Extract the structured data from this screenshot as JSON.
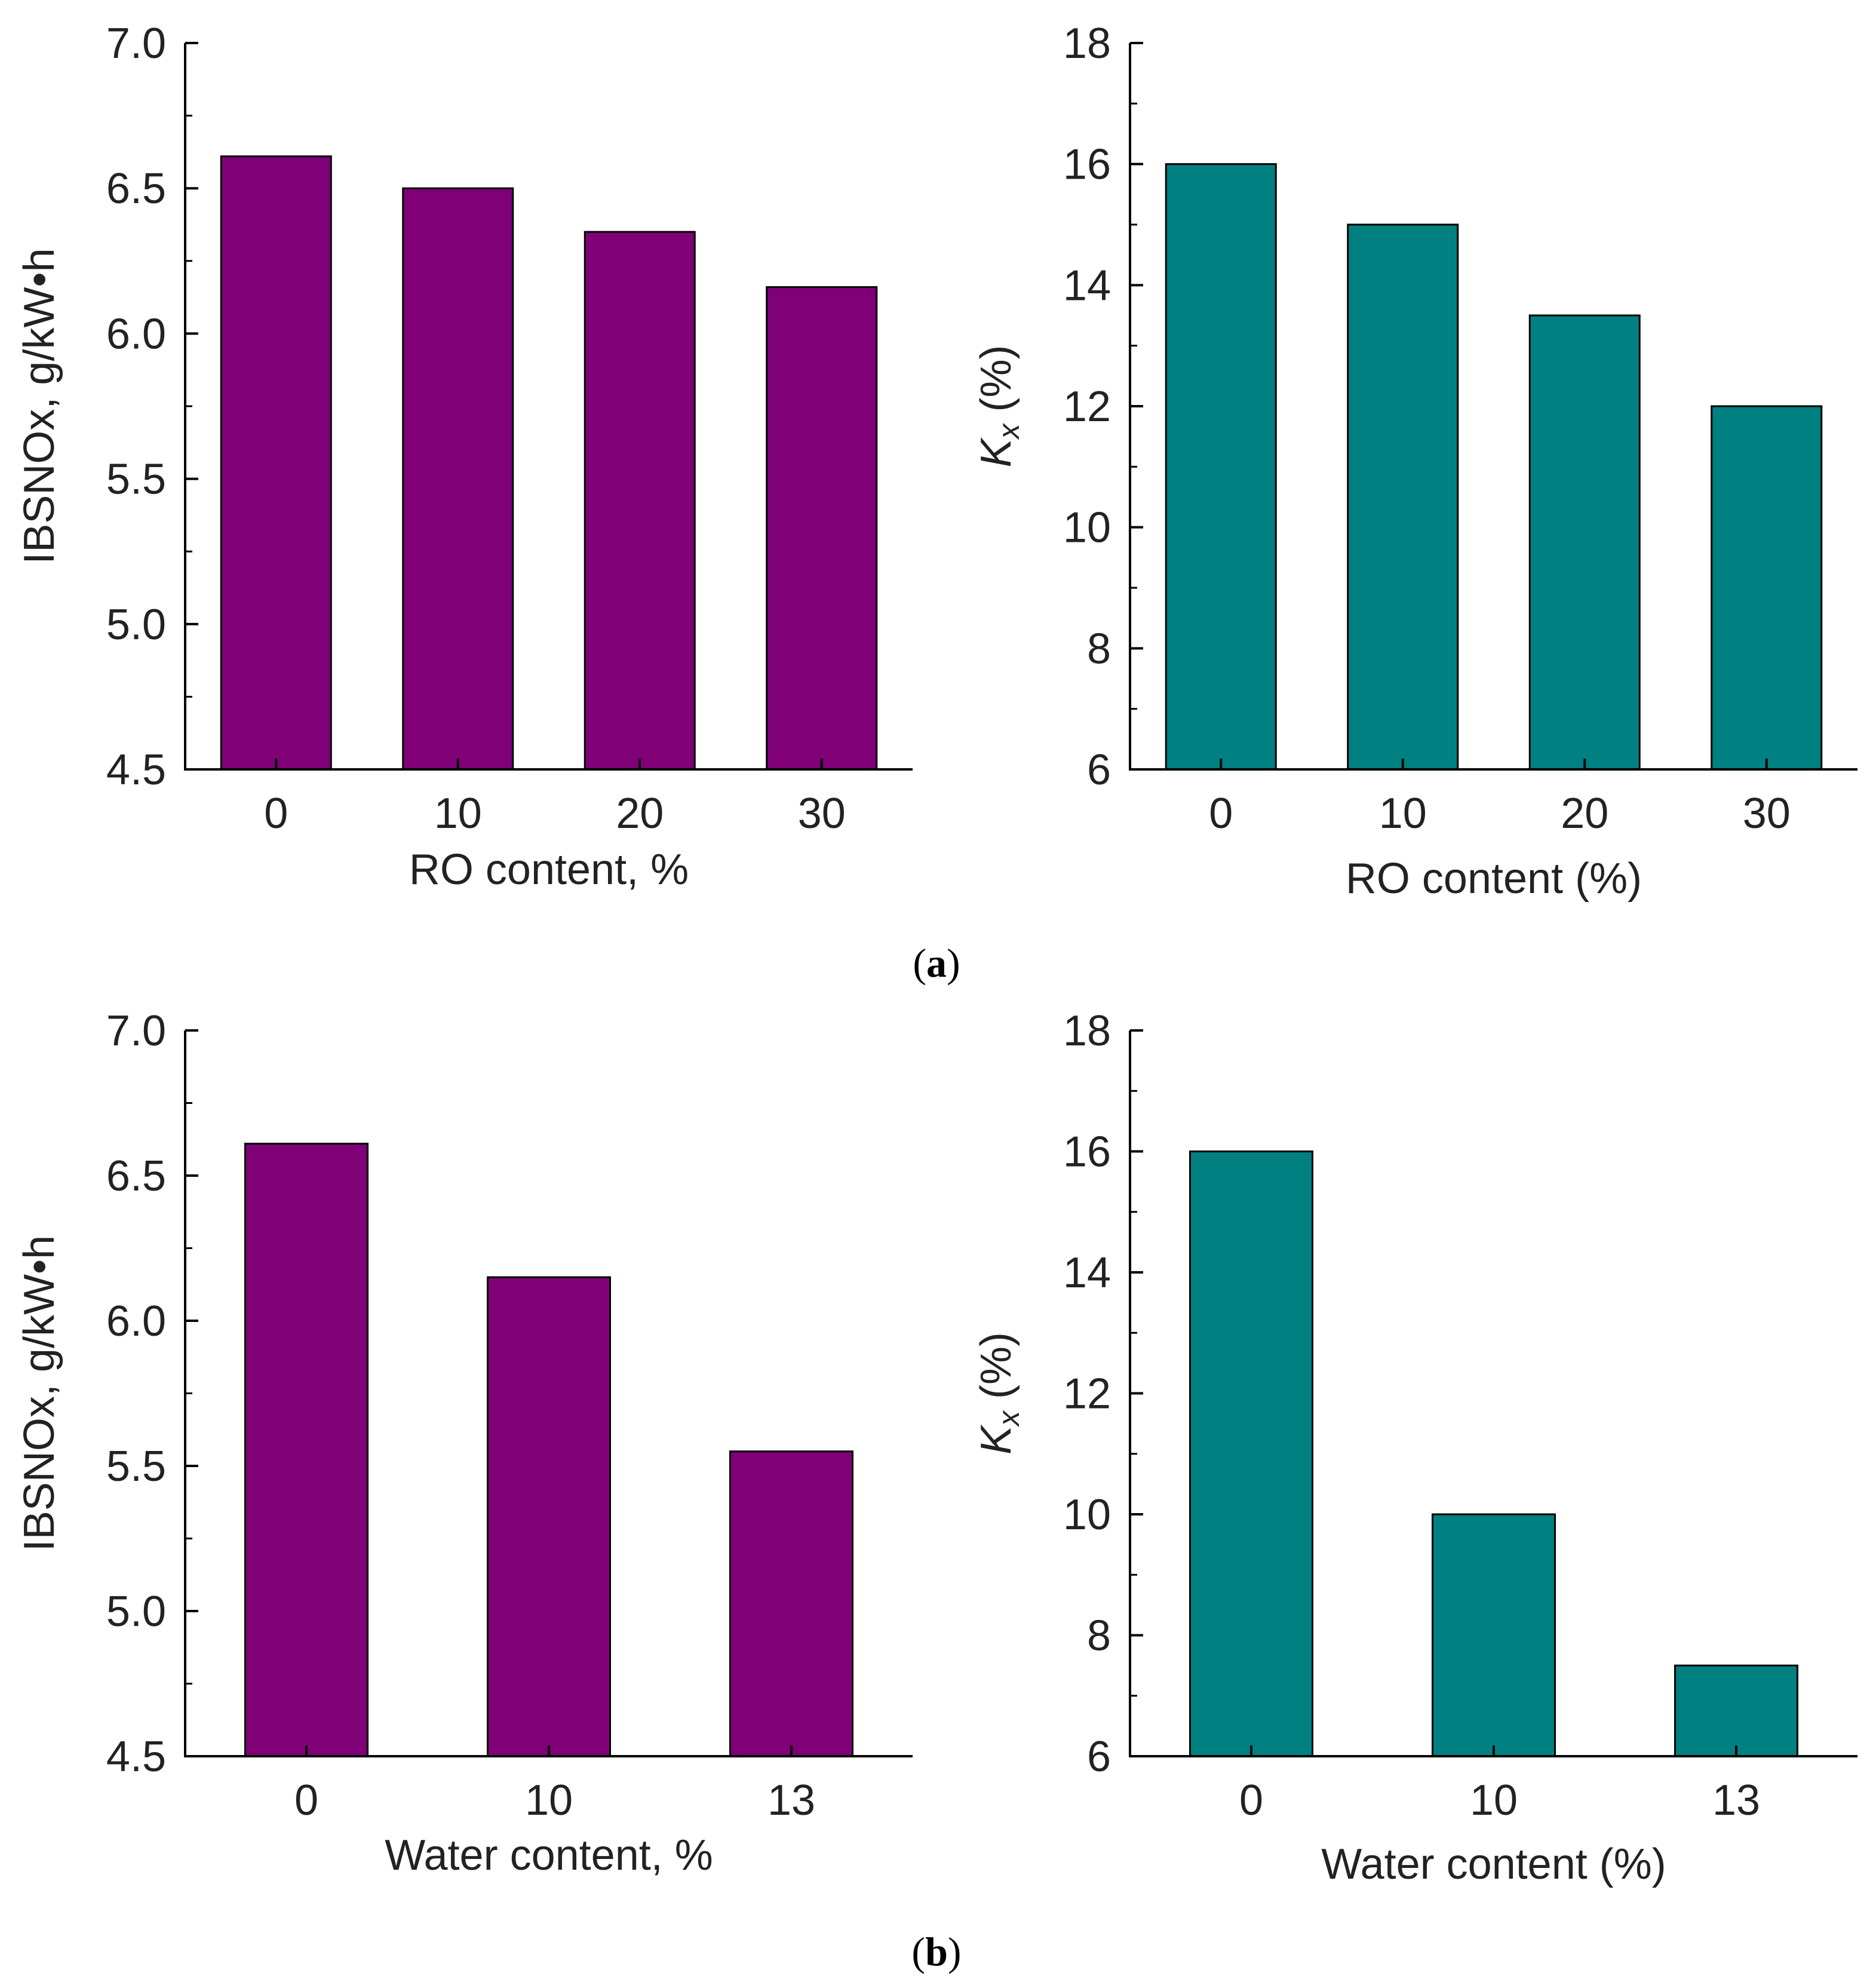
{
  "colors": {
    "ibsnox_bar": "#800078",
    "kx_bar": "#008080",
    "axis": "#000000"
  },
  "panel_captions": [
    {
      "open": "(",
      "letter": "a",
      "close": ")"
    },
    {
      "open": "(",
      "letter": "b",
      "close": ")"
    }
  ],
  "chart_data": [
    {
      "id": "a-left",
      "type": "bar",
      "categories": [
        "0",
        "10",
        "20",
        "30"
      ],
      "values": [
        6.61,
        6.5,
        6.35,
        6.16
      ],
      "xlabel": "RO content, %",
      "ylabel": "IBSNOx, g/kW•h",
      "ylim": [
        4.5,
        7.0
      ],
      "yticks": [
        4.5,
        5.0,
        5.5,
        6.0,
        6.5,
        7.0
      ],
      "ytick_labels": [
        "4.5",
        "5.0",
        "5.5",
        "6.0",
        "6.5",
        "7.0"
      ],
      "minor_step": 0.25,
      "color": "#800078"
    },
    {
      "id": "a-right",
      "type": "bar",
      "categories": [
        "0",
        "10",
        "20",
        "30"
      ],
      "values": [
        16,
        15,
        13.5,
        12
      ],
      "xlabel": "RO content (%)",
      "ylabel_symbol": "K",
      "ylabel_sub": "x",
      "ylabel_rest": " (%)",
      "ylim": [
        6,
        18
      ],
      "yticks": [
        6,
        8,
        10,
        12,
        14,
        16,
        18
      ],
      "ytick_labels": [
        "6",
        "8",
        "10",
        "12",
        "14",
        "16",
        "18"
      ],
      "minor_step": 1,
      "color": "#008080"
    },
    {
      "id": "b-left",
      "type": "bar",
      "categories": [
        "0",
        "10",
        "13"
      ],
      "values": [
        6.61,
        6.15,
        5.55
      ],
      "xlabel": "Water content, %",
      "ylabel": "IBSNOx, g/kW•h",
      "ylim": [
        4.5,
        7.0
      ],
      "yticks": [
        4.5,
        5.0,
        5.5,
        6.0,
        6.5,
        7.0
      ],
      "ytick_labels": [
        "4.5",
        "5.0",
        "5.5",
        "6.0",
        "6.5",
        "7.0"
      ],
      "minor_step": 0.25,
      "color": "#800078"
    },
    {
      "id": "b-right",
      "type": "bar",
      "categories": [
        "0",
        "10",
        "13"
      ],
      "values": [
        16,
        10,
        7.5
      ],
      "xlabel": "Water content (%)",
      "ylabel_symbol": "K",
      "ylabel_sub": "x",
      "ylabel_rest": " (%)",
      "ylim": [
        6,
        18
      ],
      "yticks": [
        6,
        8,
        10,
        12,
        14,
        16,
        18
      ],
      "ytick_labels": [
        "6",
        "8",
        "10",
        "12",
        "14",
        "16",
        "18"
      ],
      "minor_step": 1,
      "color": "#008080"
    }
  ]
}
